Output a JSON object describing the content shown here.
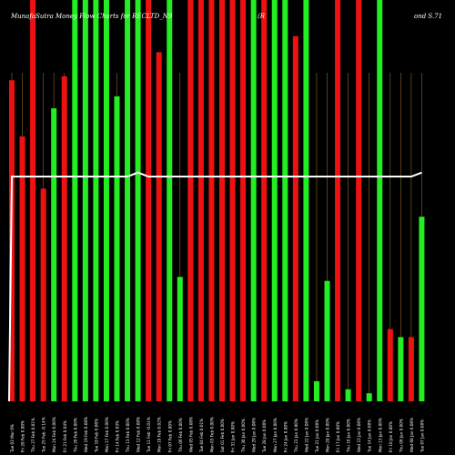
{
  "header": {
    "title": "MunafaSutra Money Flow Charts for RECLTD_N9",
    "title_mid": "(R",
    "title_right": "ond S.71"
  },
  "colors": {
    "up": "#22ee22",
    "down": "#ee1111",
    "grid": "#8a6a2a",
    "line": "#ffffff",
    "background": "#000000"
  },
  "chart_data": {
    "type": "bar",
    "title": "MunafaSutra Money Flow Charts for RECLTD_N9",
    "ylim": [
      0,
      1
    ],
    "categories": [
      "Tue 03 Mar 0%",
      "Fri 28 Feb 0.00%",
      "Thu 27 Feb 0.01%",
      "Tue 25 Feb -0.14%",
      "Mon 24 Feb 0.00%",
      "Fri 21 Feb 0.04%",
      "Thu 20 Feb 0.00%",
      "Wed 19 Feb 0.00%",
      "Tue 18 Feb 0.00%",
      "Mon 17 Feb 0.00%",
      "Fri 14 Feb 0.03%",
      "Thu 13 Feb 0.00%",
      "Wed 12 Feb 0.00%",
      "Tue 11 Feb -0.01%",
      "Mon 10 Feb 0.02%",
      "Fri 07 Feb 0.00%",
      "Thu 06 Feb 0.00%",
      "Wed 05 Feb 0.00%",
      "Tue 04 Feb 0.01%",
      "Mon 03 Feb 0.00%",
      "Sat 01 Feb 0.00%",
      "Fri 31 Jan 0.00%",
      "Thu 30 Jan 0.00%",
      "Wed 29 Jan 0.00%",
      "Tue 28 Jan 0.00%",
      "Mon 27 Jan 0.00%",
      "Fri 24 Jan 0.00%",
      "Thu 23 Jan 0.00%",
      "Wed 22 Jan 0.00%",
      "Tue 21 Jan 0.00%",
      "Mon 20 Jan 0.00%",
      "Fri 17 Jan 0.00%",
      "Thu 16 Jan 0.00%",
      "Wed 15 Jan 0.00%",
      "Tue 14 Jan 0.00%",
      "Mon 13 Jan 0.00%",
      "Fri 10 Jan 0.00%",
      "Thu 09 Jan 0.00%",
      "Wed 08 Jan 0.00%",
      "Tue 07 Jan 0.00%"
    ],
    "bar_values": [
      0.8,
      0.66,
      1.0,
      0.53,
      0.73,
      0.81,
      1.0,
      1.0,
      1.0,
      1.0,
      0.76,
      1.0,
      1.0,
      1.0,
      0.87,
      1.0,
      0.31,
      1.0,
      1.0,
      1.0,
      1.0,
      1.0,
      1.0,
      1.0,
      1.0,
      1.0,
      1.0,
      0.91,
      1.0,
      0.05,
      0.3,
      1.0,
      0.03,
      1.0,
      0.02,
      1.0,
      0.18,
      0.16,
      0.16,
      0.46
    ],
    "bar_colors": [
      "down",
      "down",
      "down",
      "down",
      "up",
      "down",
      "up",
      "up",
      "up",
      "up",
      "up",
      "up",
      "up",
      "down",
      "down",
      "up",
      "up",
      "down",
      "down",
      "down",
      "down",
      "down",
      "down",
      "up",
      "down",
      "up",
      "up",
      "down",
      "up",
      "up",
      "up",
      "down",
      "up",
      "down",
      "up",
      "up",
      "down",
      "up",
      "down",
      "up"
    ],
    "line": {
      "name": "",
      "values": [
        0.56,
        0.56,
        0.56,
        0.56,
        0.56,
        0.56,
        0.56,
        0.56,
        0.56,
        0.56,
        0.56,
        0.56,
        0.57,
        0.56,
        0.56,
        0.56,
        0.56,
        0.56,
        0.56,
        0.56,
        0.56,
        0.56,
        0.56,
        0.56,
        0.56,
        0.56,
        0.56,
        0.56,
        0.56,
        0.56,
        0.56,
        0.56,
        0.56,
        0.56,
        0.56,
        0.56,
        0.56,
        0.56,
        0.56,
        0.57
      ]
    },
    "grid": true,
    "legend": "none"
  }
}
